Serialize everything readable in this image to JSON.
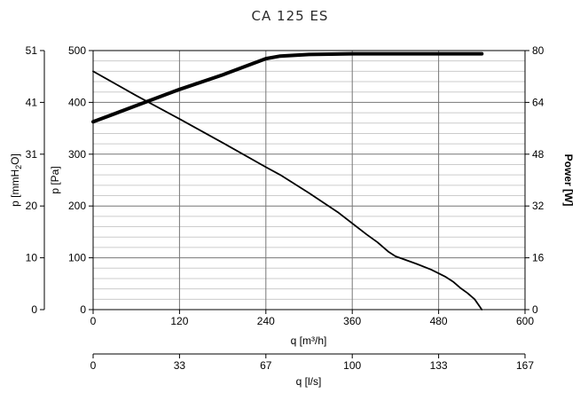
{
  "chart_data": {
    "type": "line",
    "title": "CA 125 ES",
    "xlabel": "q [m³/h]",
    "x2label": "q [l/s]",
    "ylabel_left": "p [Pa]",
    "ylabel_left_outer_prefix": "p [mmH",
    "ylabel_left_outer_sub": "2",
    "ylabel_left_outer_suffix": "O]",
    "ylabel_right": "Power [W]",
    "xlim": [
      0,
      600
    ],
    "ylim": [
      0,
      500
    ],
    "y2lim": [
      0,
      80
    ],
    "x_ticks": [
      "0",
      "120",
      "240",
      "360",
      "480",
      "600"
    ],
    "x2_ticks": [
      "0",
      "33",
      "67",
      "100",
      "133",
      "167"
    ],
    "y_ticks": [
      "0",
      "100",
      "200",
      "300",
      "400",
      "500"
    ],
    "y_outer_ticks": [
      "0",
      "10",
      "20",
      "31",
      "41",
      "51"
    ],
    "y2_ticks": [
      "0",
      "16",
      "32",
      "48",
      "64",
      "80"
    ],
    "grid": true,
    "series": [
      {
        "role": "pressure",
        "axis": "left",
        "points": [
          [
            0,
            460
          ],
          [
            60,
            413
          ],
          [
            120,
            368
          ],
          [
            180,
            322
          ],
          [
            240,
            275
          ],
          [
            260,
            260
          ],
          [
            300,
            225
          ],
          [
            340,
            188
          ],
          [
            380,
            145
          ],
          [
            395,
            130
          ],
          [
            410,
            112
          ],
          [
            420,
            103
          ],
          [
            450,
            88
          ],
          [
            470,
            77
          ],
          [
            490,
            63
          ],
          [
            500,
            54
          ],
          [
            510,
            42
          ],
          [
            520,
            32
          ],
          [
            530,
            20
          ],
          [
            535,
            10
          ],
          [
            540,
            0
          ]
        ]
      },
      {
        "role": "power",
        "axis": "right",
        "points": [
          [
            0,
            58
          ],
          [
            60,
            63
          ],
          [
            120,
            68
          ],
          [
            180,
            72.5
          ],
          [
            240,
            77.5
          ],
          [
            260,
            78.3
          ],
          [
            300,
            78.8
          ],
          [
            360,
            79
          ],
          [
            420,
            79
          ],
          [
            480,
            79
          ],
          [
            540,
            79
          ]
        ]
      }
    ]
  }
}
